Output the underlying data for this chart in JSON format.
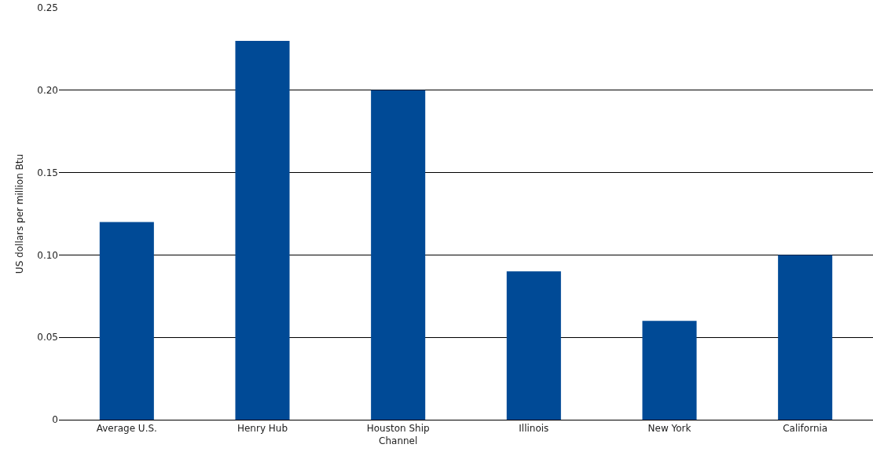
{
  "chart_data": {
    "type": "bar",
    "ylabel": "US dollars per million Btu",
    "categories": [
      "Average U.S.",
      "Henry Hub",
      "Houston Ship Channel",
      "Illinois",
      "New York",
      "California"
    ],
    "values": [
      0.12,
      0.23,
      0.2,
      0.09,
      0.06,
      0.1
    ],
    "color": "#004a96",
    "ylim": [
      0,
      0.25
    ],
    "yticks": [
      {
        "value": 0,
        "label": "0"
      },
      {
        "value": 0.05,
        "label": "0.05"
      },
      {
        "value": 0.1,
        "label": "0.10"
      },
      {
        "value": 0.15,
        "label": "0.15"
      },
      {
        "value": 0.2,
        "label": "0.20"
      },
      {
        "value": 0.25,
        "label": "0.25"
      }
    ],
    "grid": "y"
  }
}
